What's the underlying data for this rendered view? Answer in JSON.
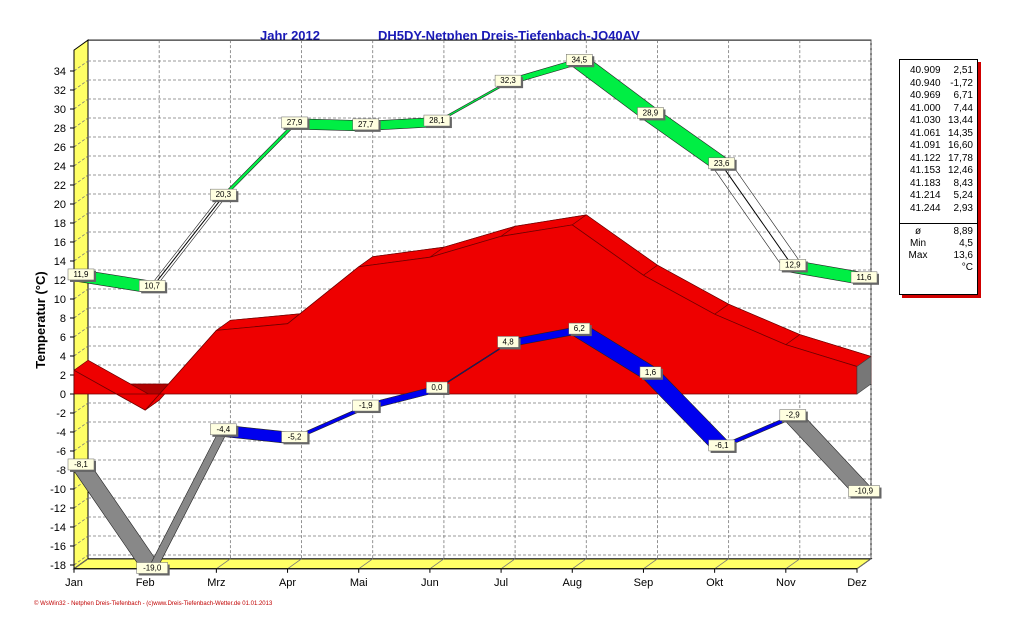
{
  "chart_data": {
    "type": "line",
    "title": "Jahr  2012",
    "subtitle": "DH5DY-Netphen Dreis-Tiefenbach-JO40AV",
    "ylabel": "Temperatur  (°C)",
    "xlabel": "",
    "ylim": [
      -18,
      35
    ],
    "yticks": [
      "34",
      "32",
      "30",
      "28",
      "26",
      "24",
      "22",
      "20",
      "18",
      "16",
      "14",
      "12",
      "10",
      "8",
      "6",
      "4",
      "2",
      "0",
      "-2",
      "-4",
      "-6",
      "-8",
      "-10",
      "-12",
      "-14",
      "-16",
      "-18"
    ],
    "categories": [
      "Jan",
      "Feb",
      "Mrz",
      "Apr",
      "Mai",
      "Jun",
      "Jul",
      "Aug",
      "Sep",
      "Okt",
      "Nov",
      "Dez"
    ],
    "grid": true,
    "series": [
      {
        "key": "max",
        "color": "#00ee44",
        "values": [
          11.9,
          10.7,
          20.3,
          27.9,
          27.7,
          28.1,
          32.3,
          34.5,
          28.9,
          23.6,
          12.9,
          11.6
        ],
        "labels": [
          "11,9",
          "10,7",
          "20,3",
          "27,9",
          "27,7",
          "28,1",
          "32,3",
          "34,5",
          "28,9",
          "23,6",
          "12,9",
          "11,6"
        ]
      },
      {
        "key": "mean",
        "color": "#ee0000",
        "values": [
          2.5,
          -1.7,
          6.7,
          7.4,
          13.4,
          14.4,
          16.6,
          17.8,
          12.5,
          8.4,
          5.2,
          2.9
        ]
      },
      {
        "key": "min",
        "color": "#0000ee",
        "values": [
          -8.1,
          -19.0,
          -4.4,
          -5.2,
          -1.9,
          0.0,
          4.8,
          6.2,
          1.6,
          -6.1,
          -2.9,
          -10.9
        ],
        "labels": [
          "-8,1",
          "-19,0",
          "-4,4",
          "-5,2",
          "-1,9",
          "0,0",
          "4,8",
          "6,2",
          "1,6",
          "-6,1",
          "-2,9",
          "-10,9"
        ]
      }
    ],
    "footer": "© WsWin32 - Netphen Dreis-Tiefenbach - (c)www.Dreis-Tiefenbach-Wetter.de  01.01.2013"
  },
  "side_table": {
    "rows": [
      [
        "40.909",
        "2,51"
      ],
      [
        "40.940",
        "-1,72"
      ],
      [
        "40.969",
        "6,71"
      ],
      [
        "41.000",
        "7,44"
      ],
      [
        "41.030",
        "13,44"
      ],
      [
        "41.061",
        "14,35"
      ],
      [
        "41.091",
        "16,60"
      ],
      [
        "41.122",
        "17,78"
      ],
      [
        "41.153",
        "12,46"
      ],
      [
        "41.183",
        "8,43"
      ],
      [
        "41.214",
        "5,24"
      ],
      [
        "41.244",
        "2,93"
      ]
    ],
    "stats": [
      [
        "ø",
        "8,89"
      ],
      [
        "Min",
        "4,5"
      ],
      [
        "Max",
        "13,6"
      ],
      [
        "",
        "°C"
      ]
    ]
  },
  "colors": {
    "title": "#1a1ab8",
    "wall": "#ffff66",
    "max": "#00ee44",
    "mean": "#ee0000",
    "min": "#0000ee",
    "gap": "#888888"
  }
}
